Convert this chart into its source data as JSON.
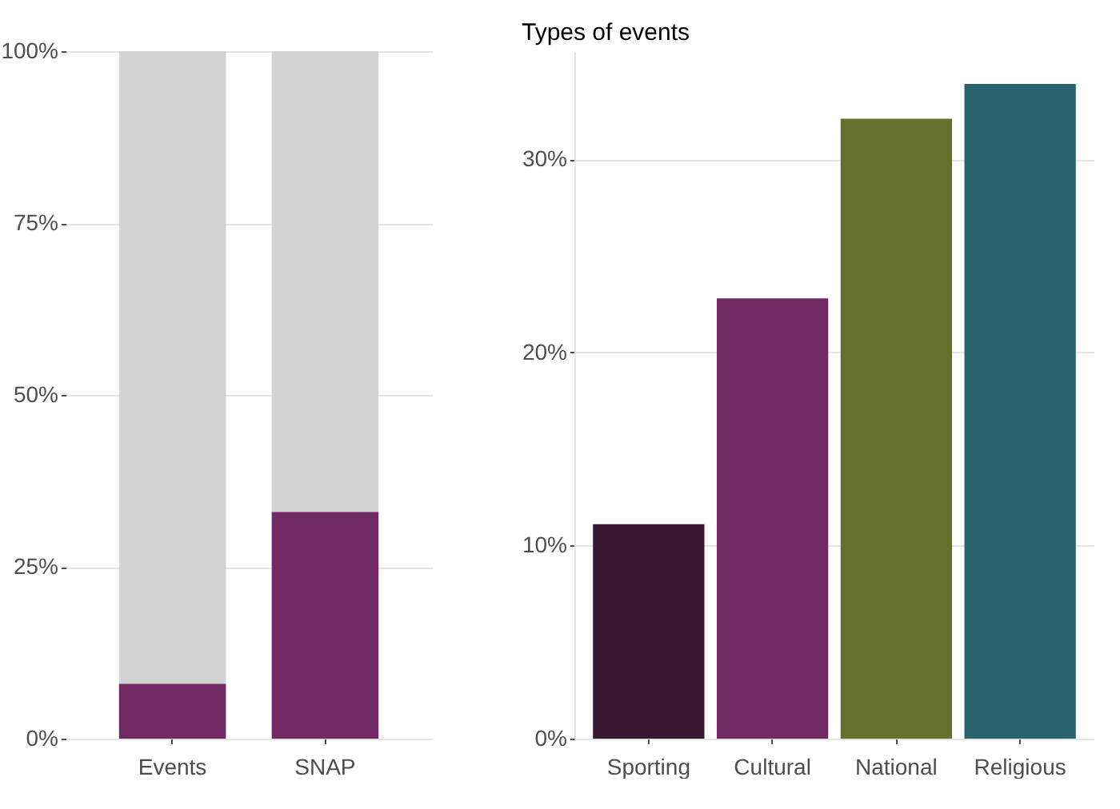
{
  "chart_data": [
    {
      "type": "bar",
      "stacked": true,
      "categories": [
        "Events",
        "SNAP"
      ],
      "series": [
        {
          "color": "#702963",
          "values": [
            8,
            33
          ]
        },
        {
          "color": "#d3d3d3",
          "values": [
            92,
            67
          ]
        }
      ],
      "ylim": [
        0,
        100
      ],
      "yticks": [
        {
          "value": 0,
          "label": "0%"
        },
        {
          "value": 25,
          "label": "25%"
        },
        {
          "value": 50,
          "label": "50%"
        },
        {
          "value": 75,
          "label": "75%"
        },
        {
          "value": 100,
          "label": "100%"
        }
      ],
      "grid": "y"
    },
    {
      "type": "bar",
      "title": "Types of events",
      "categories": [
        "Sporting",
        "Cultural",
        "National",
        "Religious"
      ],
      "values": [
        11.1,
        22.8,
        32.1,
        33.9
      ],
      "colors": [
        "#3a1632",
        "#702963",
        "#64702b",
        "#29636d"
      ],
      "ylim": [
        0,
        35.6
      ],
      "yticks": [
        {
          "value": 0,
          "label": "0%"
        },
        {
          "value": 10,
          "label": "10%"
        },
        {
          "value": 20,
          "label": "20%"
        },
        {
          "value": 30,
          "label": "30%"
        }
      ],
      "grid": "y"
    }
  ]
}
